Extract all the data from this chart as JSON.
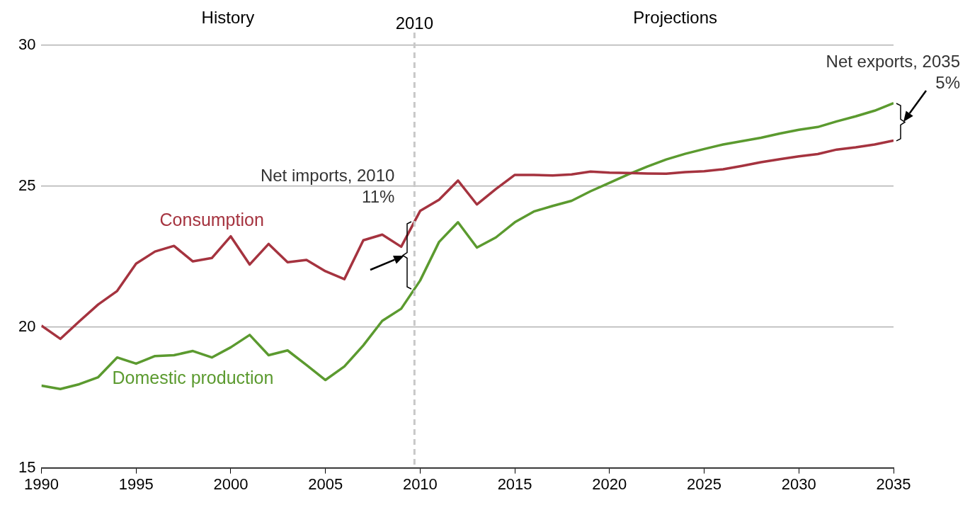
{
  "chart_data": {
    "type": "line",
    "x": [
      1990,
      1991,
      1992,
      1993,
      1994,
      1995,
      1996,
      1997,
      1998,
      1999,
      2000,
      2001,
      2002,
      2003,
      2004,
      2005,
      2006,
      2007,
      2008,
      2009,
      2010,
      2011,
      2012,
      2013,
      2014,
      2015,
      2016,
      2017,
      2018,
      2019,
      2020,
      2021,
      2022,
      2023,
      2024,
      2025,
      2026,
      2027,
      2028,
      2029,
      2030,
      2031,
      2032,
      2033,
      2034,
      2035
    ],
    "series": [
      {
        "name": "Consumption",
        "color": "#a5333f",
        "values": [
          20.05,
          19.58,
          20.2,
          20.8,
          21.28,
          22.25,
          22.68,
          22.88,
          22.33,
          22.45,
          23.22,
          22.22,
          22.95,
          22.3,
          22.38,
          21.98,
          21.7,
          23.08,
          23.28,
          22.85,
          24.12,
          24.52,
          25.2,
          24.35,
          24.9,
          25.4,
          25.4,
          25.38,
          25.42,
          25.52,
          25.48,
          25.47,
          25.45,
          25.44,
          25.5,
          25.53,
          25.6,
          25.72,
          25.85,
          25.96,
          26.06,
          26.14,
          26.3,
          26.38,
          26.48,
          26.62
        ]
      },
      {
        "name": "Domestic production",
        "color": "#5b9a2f",
        "values": [
          17.92,
          17.8,
          17.97,
          18.22,
          18.92,
          18.7,
          18.97,
          19.0,
          19.15,
          18.92,
          19.28,
          19.72,
          19.0,
          19.17,
          18.65,
          18.12,
          18.6,
          19.35,
          20.22,
          20.65,
          21.65,
          23.02,
          23.72,
          22.82,
          23.18,
          23.72,
          24.1,
          24.3,
          24.48,
          24.82,
          25.12,
          25.42,
          25.7,
          25.95,
          26.15,
          26.32,
          26.48,
          26.6,
          26.72,
          26.87,
          27.0,
          27.1,
          27.3,
          27.48,
          27.68,
          27.95
        ]
      }
    ],
    "xlim": [
      1990,
      2035
    ],
    "xticks": [
      1990,
      1995,
      2000,
      2005,
      2010,
      2015,
      2020,
      2025,
      2030,
      2035
    ],
    "ylim": [
      15,
      30
    ],
    "yticks": [
      15,
      20,
      25,
      30
    ],
    "grid": "y",
    "legend": false,
    "marker": "none",
    "line_style": "solid",
    "ref_lines": [
      {
        "axis": "x",
        "value": 2009.7,
        "label": "2010",
        "color": "#c8c8c8",
        "line_style": "dashed"
      }
    ],
    "annotations": [
      "History",
      "Projections",
      "Net imports, 2010\n11%",
      "Net exports, 2035\n5%"
    ]
  }
}
